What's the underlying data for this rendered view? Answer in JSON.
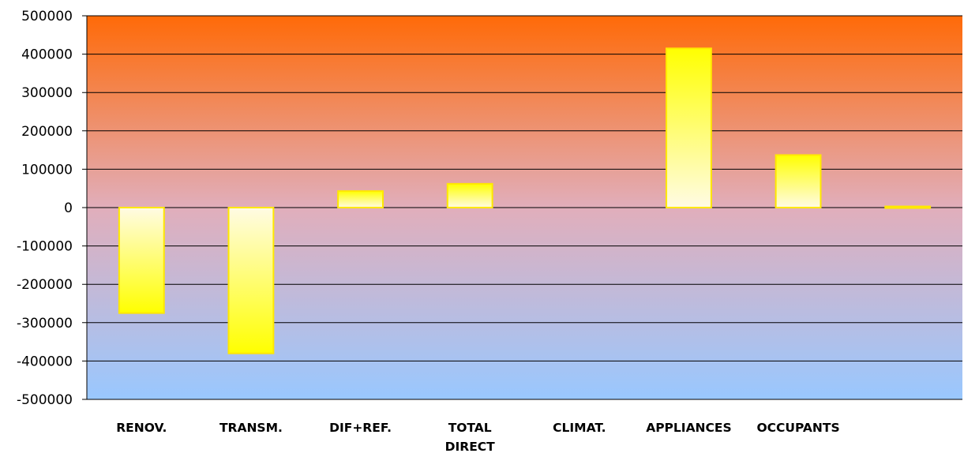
{
  "chart_data": {
    "type": "bar",
    "categories": [
      "RENOV.",
      "TRANSM.",
      "DIF+REF.",
      "TOTAL\nDIRECT",
      "CLIMAT.",
      "APPLIANCES",
      "OCCUPANTS",
      ""
    ],
    "values": [
      -275000,
      -380000,
      43000,
      62000,
      0,
      415000,
      137000,
      3000
    ],
    "ylim": [
      -500000,
      500000
    ],
    "yticks": [
      500000,
      400000,
      300000,
      200000,
      100000,
      0,
      -100000,
      -200000,
      -300000,
      -400000,
      -500000
    ],
    "grid": true,
    "colors": {
      "background_top": "#ff6a08",
      "background_mid": "#e1aebb",
      "background_bottom": "#99c8ff",
      "bar_fill_strong": "#ffff00",
      "bar_fill_light": "#fffbe4",
      "bar_border": "#ffe800"
    }
  }
}
